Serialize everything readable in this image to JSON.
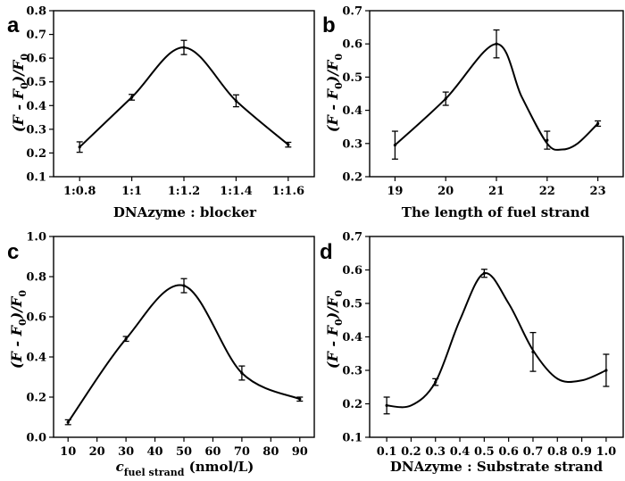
{
  "chart_data": [
    {
      "type": "line",
      "panel": "a",
      "categories": [
        "1:0.8",
        "1:1",
        "1:1.2",
        "1:1.4",
        "1:1.6"
      ],
      "x": [
        1,
        2,
        3,
        4,
        5
      ],
      "values": [
        0.225,
        0.435,
        0.645,
        0.42,
        0.235
      ],
      "errors": [
        0.022,
        0.012,
        0.03,
        0.025,
        0.01
      ],
      "curve": [
        [
          1,
          0.225
        ],
        [
          2,
          0.435
        ],
        [
          3,
          0.645
        ],
        [
          4,
          0.42
        ],
        [
          5,
          0.235
        ]
      ],
      "xlim": [
        0.5,
        5.5
      ],
      "xticks": [
        1,
        2,
        3,
        4,
        5
      ],
      "ylim": [
        0.1,
        0.8
      ],
      "yticks": [
        0.1,
        0.2,
        0.3,
        0.4,
        0.5,
        0.6,
        0.7,
        0.8
      ],
      "ytick_labels": [
        "0.1",
        "0.2",
        "0.3",
        "0.4",
        "0.5",
        "0.6",
        "0.7",
        "0.8"
      ],
      "xlabel": "DNAzyme : blocker",
      "ylabel": {
        "main": "(F - F",
        "sub": "0",
        "tail": ")/F",
        "sub2": "0"
      }
    },
    {
      "type": "line",
      "panel": "b",
      "categories": [
        "19",
        "20",
        "21",
        "22",
        "23"
      ],
      "x": [
        19,
        20,
        21,
        22,
        23
      ],
      "values": [
        0.295,
        0.435,
        0.6,
        0.31,
        0.36
      ],
      "errors": [
        0.042,
        0.02,
        0.042,
        0.027,
        0.008
      ],
      "curve": [
        [
          19,
          0.295
        ],
        [
          20,
          0.435
        ],
        [
          21,
          0.6
        ],
        [
          21.5,
          0.44
        ],
        [
          22,
          0.3
        ],
        [
          22.3,
          0.282
        ],
        [
          22.6,
          0.3
        ],
        [
          23,
          0.36
        ]
      ],
      "xlim": [
        18.5,
        23.5
      ],
      "xticks": [
        19,
        20,
        21,
        22,
        23
      ],
      "ylim": [
        0.2,
        0.7
      ],
      "yticks": [
        0.2,
        0.3,
        0.4,
        0.5,
        0.6,
        0.7
      ],
      "ytick_labels": [
        "0.2",
        "0.3",
        "0.4",
        "0.5",
        "0.6",
        "0.7"
      ],
      "xlabel": "The length of fuel strand",
      "ylabel": {
        "main": "(F - F",
        "sub": "0",
        "tail": ")/F",
        "sub2": "0"
      }
    },
    {
      "type": "line",
      "panel": "c",
      "categories": [
        "10",
        "20",
        "30",
        "40",
        "50",
        "60",
        "70",
        "80",
        "90"
      ],
      "x": [
        10,
        30,
        50,
        70,
        90
      ],
      "values": [
        0.075,
        0.49,
        0.755,
        0.32,
        0.19
      ],
      "errors": [
        0.012,
        0.012,
        0.035,
        0.035,
        0.01
      ],
      "curve": [
        [
          10,
          0.075
        ],
        [
          30,
          0.49
        ],
        [
          50,
          0.755
        ],
        [
          70,
          0.32
        ],
        [
          90,
          0.19
        ]
      ],
      "xlim": [
        5,
        95
      ],
      "xticks": [
        10,
        20,
        30,
        40,
        50,
        60,
        70,
        80,
        90
      ],
      "ylim": [
        0,
        1
      ],
      "yticks": [
        0,
        0.2,
        0.4,
        0.6,
        0.8,
        1.0
      ],
      "ytick_labels": [
        "0.0",
        "0.2",
        "0.4",
        "0.6",
        "0.8",
        "1.0"
      ],
      "xlabel": {
        "pre": "c",
        "sub": "fuel strand",
        "post": " (nmol/L)"
      },
      "ylabel": {
        "main": "(F - F",
        "sub": "0",
        "tail": ")/F",
        "sub2": "0"
      }
    },
    {
      "type": "line",
      "panel": "d",
      "categories": [
        "0.1",
        "0.2",
        "0.3",
        "0.4",
        "0.5",
        "0.6",
        "0.7",
        "0.8",
        "0.9",
        "1.0"
      ],
      "x": [
        0.1,
        0.3,
        0.5,
        0.7,
        1.0
      ],
      "values": [
        0.195,
        0.265,
        0.59,
        0.355,
        0.3
      ],
      "errors": [
        0.025,
        0.01,
        0.012,
        0.058,
        0.048
      ],
      "curve": [
        [
          0.1,
          0.195
        ],
        [
          0.2,
          0.195
        ],
        [
          0.3,
          0.265
        ],
        [
          0.4,
          0.45
        ],
        [
          0.5,
          0.59
        ],
        [
          0.6,
          0.5
        ],
        [
          0.7,
          0.36
        ],
        [
          0.8,
          0.275
        ],
        [
          0.9,
          0.27
        ],
        [
          1.0,
          0.3
        ]
      ],
      "xlim": [
        0.03,
        1.07
      ],
      "xticks": [
        0.1,
        0.2,
        0.3,
        0.4,
        0.5,
        0.6,
        0.7,
        0.8,
        0.9,
        1.0
      ],
      "ylim": [
        0.1,
        0.7
      ],
      "yticks": [
        0.1,
        0.2,
        0.3,
        0.4,
        0.5,
        0.6,
        0.7
      ],
      "ytick_labels": [
        "0.1",
        "0.2",
        "0.3",
        "0.4",
        "0.5",
        "0.6",
        "0.7"
      ],
      "xlabel": "DNAzyme : Substrate strand",
      "ylabel": {
        "main": "(F - F",
        "sub": "0",
        "tail": ")/F",
        "sub2": "0"
      }
    }
  ]
}
